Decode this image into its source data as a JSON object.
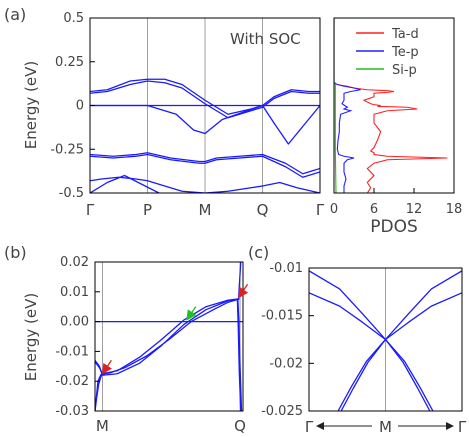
{
  "panel_labels": {
    "a": "(a)",
    "b": "(b)",
    "c": "(c)"
  },
  "chart_data": [
    {
      "type": "line",
      "panel": "(a)",
      "annotation": "With SOC",
      "ylabel": "Energy (eV)",
      "ylim": [
        -0.5,
        0.5
      ],
      "ytick_labels": [
        "0.5",
        "0.25",
        "0",
        "-0.25",
        "-0.5"
      ],
      "yticks": [
        0.5,
        0.25,
        0,
        -0.25,
        -0.5
      ],
      "kpoint_labels": [
        "Γ",
        "P",
        "M",
        "Q",
        "Γ"
      ],
      "kpoints": [
        0,
        1,
        2,
        3,
        4
      ],
      "fermi_level": 0.0,
      "series_color": "#1a1aff",
      "bands": [
        {
          "x": [
            0,
            0.3,
            0.7,
            1.0,
            1.3,
            1.6,
            2.0,
            2.4,
            2.8,
            3.0,
            3.2,
            3.5,
            3.8,
            4.0
          ],
          "y": [
            0.08,
            0.09,
            0.14,
            0.15,
            0.15,
            0.12,
            0.03,
            -0.05,
            -0.02,
            0.0,
            0.05,
            0.09,
            0.08,
            0.08
          ]
        },
        {
          "x": [
            0,
            0.3,
            0.7,
            1.0,
            1.3,
            1.6,
            2.0,
            2.4,
            2.8,
            3.0,
            3.2,
            3.5,
            3.8,
            4.0
          ],
          "y": [
            0.07,
            0.08,
            0.12,
            0.14,
            0.13,
            0.1,
            0.01,
            -0.07,
            -0.03,
            -0.01,
            0.04,
            0.08,
            0.07,
            0.07
          ]
        },
        {
          "x": [
            0,
            1.0,
            1.5,
            1.8,
            2.0,
            2.3,
            3.0
          ],
          "y": [
            0.0,
            0.0,
            -0.05,
            -0.14,
            -0.16,
            -0.08,
            0.0
          ]
        },
        {
          "x": [
            3.0,
            3.2,
            3.45,
            3.7,
            4.0
          ],
          "y": [
            0.0,
            -0.1,
            -0.22,
            -0.12,
            0.0
          ]
        },
        {
          "x": [
            0,
            0.4,
            0.8,
            1.0,
            1.4,
            1.9,
            2.0,
            2.2,
            2.6,
            3.0,
            3.4,
            3.7,
            4.0
          ],
          "y": [
            -0.28,
            -0.29,
            -0.28,
            -0.27,
            -0.3,
            -0.32,
            -0.32,
            -0.3,
            -0.29,
            -0.28,
            -0.33,
            -0.39,
            -0.36
          ]
        },
        {
          "x": [
            0,
            0.4,
            0.8,
            1.0,
            1.4,
            1.9,
            2.0,
            2.2,
            2.6,
            3.0,
            3.4,
            3.7,
            4.0
          ],
          "y": [
            -0.29,
            -0.3,
            -0.29,
            -0.28,
            -0.31,
            -0.33,
            -0.33,
            -0.31,
            -0.3,
            -0.29,
            -0.35,
            -0.41,
            -0.38
          ]
        },
        {
          "x": [
            0,
            0.2,
            0.5,
            0.8,
            1.0,
            1.3,
            1.6,
            2.0,
            2.4,
            2.8,
            3.0
          ],
          "y": [
            -0.43,
            -0.42,
            -0.41,
            -0.42,
            -0.43,
            -0.46,
            -0.49,
            -0.5,
            -0.49,
            -0.47,
            -0.46
          ]
        },
        {
          "x": [
            0,
            0.3,
            0.6,
            0.9,
            1.2
          ],
          "y": [
            -0.5,
            -0.44,
            -0.4,
            -0.45,
            -0.5
          ]
        },
        {
          "x": [
            3.0,
            3.3,
            3.6,
            4.0
          ],
          "y": [
            -0.46,
            -0.44,
            -0.47,
            -0.5
          ]
        }
      ]
    },
    {
      "type": "line",
      "panel": "PDOS",
      "xlabel": "PDOS",
      "xlim": [
        0,
        18
      ],
      "xtick_labels": [
        "0",
        "6",
        "12",
        "18"
      ],
      "xticks": [
        0,
        6,
        12,
        18
      ],
      "ylim": [
        -0.5,
        0.5
      ],
      "legend": "top-right",
      "series": [
        {
          "name": "Ta-d",
          "color": "#ff2020",
          "x": [
            0,
            0,
            0.2,
            0.2,
            0.5,
            1.2,
            2.0,
            3.0,
            4.0,
            5.0,
            8.0,
            9.0,
            8.0,
            6.0,
            6.0,
            4.5,
            5.5,
            6.0,
            7.0,
            6.5,
            11.0,
            12.5,
            8.0,
            6.0,
            6.0,
            7.0,
            6.5,
            6.0,
            5.5,
            6.0,
            6.0,
            8.0,
            17.0,
            8.0,
            6.0,
            5.0,
            6.0,
            5.0,
            5.5,
            5.0
          ],
          "y": [
            0.5,
            0.13,
            0.128,
            0.125,
            0.12,
            0.115,
            0.11,
            0.1,
            0.095,
            0.09,
            0.085,
            0.08,
            0.075,
            0.07,
            0.05,
            0.03,
            0.01,
            0.005,
            0.0,
            -0.005,
            -0.01,
            -0.02,
            -0.03,
            -0.05,
            -0.1,
            -0.15,
            -0.2,
            -0.24,
            -0.26,
            -0.27,
            -0.28,
            -0.29,
            -0.3,
            -0.31,
            -0.33,
            -0.36,
            -0.4,
            -0.44,
            -0.47,
            -0.5
          ]
        },
        {
          "name": "Te-p",
          "color": "#2020ff",
          "x": [
            0,
            0,
            0.5,
            1.5,
            3.0,
            4.0,
            2.5,
            1.5,
            1.5,
            1.2,
            1.6,
            2.0,
            1.5,
            2.5,
            1.0,
            0.8,
            0.8,
            0.6,
            0.5,
            0.7,
            1.5,
            3.0,
            2.0,
            1.5,
            1.5,
            1.8,
            1.5,
            1.5
          ],
          "y": [
            0.5,
            0.13,
            0.12,
            0.11,
            0.1,
            0.09,
            0.08,
            0.07,
            0.03,
            0.01,
            0.0,
            -0.01,
            -0.02,
            -0.03,
            -0.05,
            -0.1,
            -0.15,
            -0.2,
            -0.25,
            -0.28,
            -0.29,
            -0.3,
            -0.31,
            -0.33,
            -0.38,
            -0.42,
            -0.46,
            -0.5
          ]
        },
        {
          "name": "Si-p",
          "color": "#20c020",
          "x": [
            0,
            0,
            0.2,
            0.2,
            0.2,
            0.3
          ],
          "y": [
            0.5,
            0.13,
            0.12,
            0.0,
            -0.25,
            -0.5
          ]
        }
      ]
    },
    {
      "type": "line",
      "panel": "(b)",
      "ylabel": "Energy (eV)",
      "ylim": [
        -0.03,
        0.02
      ],
      "ytick_labels": [
        "0.02",
        "0.01",
        "0.00",
        "-0.01",
        "-0.02",
        "-0.03"
      ],
      "yticks": [
        0.02,
        0.01,
        0.0,
        -0.01,
        -0.02,
        -0.03
      ],
      "kpoint_labels": [
        "M",
        "Q"
      ],
      "kpoints": [
        0.05,
        0.98
      ],
      "fermi_level": 0.0,
      "series_color": "#1a1aff",
      "arrows": [
        {
          "color": "#e02020",
          "x": 0.05,
          "y": -0.018
        },
        {
          "color": "#20c020",
          "x": 0.62,
          "y": 0.0
        },
        {
          "color": "#e02020",
          "x": 0.97,
          "y": 0.0075
        }
      ],
      "bands": [
        {
          "x": [
            0.0,
            0.03,
            0.05,
            0.15,
            0.3,
            0.45,
            0.6,
            0.75,
            0.9,
            0.97
          ],
          "y": [
            -0.013,
            -0.015,
            -0.018,
            -0.0175,
            -0.014,
            -0.008,
            -0.001,
            0.004,
            0.007,
            0.0075
          ]
        },
        {
          "x": [
            0.0,
            0.03,
            0.05,
            0.15,
            0.3,
            0.45,
            0.6,
            0.75,
            0.9,
            0.97
          ],
          "y": [
            -0.0135,
            -0.0155,
            -0.0175,
            -0.0165,
            -0.012,
            -0.006,
            0.0005,
            0.005,
            0.0072,
            0.0076
          ]
        },
        {
          "x": [
            0.0,
            0.01,
            0.02,
            0.04,
            0.05,
            0.1,
            0.2,
            0.35,
            0.5,
            0.65,
            0.8,
            0.9,
            0.97
          ],
          "y": [
            -0.03,
            -0.025,
            -0.02,
            -0.0178,
            -0.0176,
            -0.0172,
            -0.0155,
            -0.0115,
            -0.006,
            0.0,
            0.004,
            0.0065,
            0.0075
          ]
        },
        {
          "x": [
            0.0,
            0.01,
            0.025,
            0.04,
            0.05
          ],
          "y": [
            -0.03,
            -0.026,
            -0.021,
            -0.0185,
            -0.0178
          ]
        },
        {
          "x": [
            0.97,
            0.975,
            0.985,
            0.995,
            1.0
          ],
          "y": [
            0.0075,
            0.012,
            0.02,
            0.03,
            0.04
          ]
        },
        {
          "x": [
            0.965,
            0.972,
            0.98,
            0.99
          ],
          "y": [
            0.0076,
            0.0,
            -0.015,
            -0.03
          ]
        },
        {
          "x": [
            0.962,
            0.968,
            0.975,
            0.985
          ],
          "y": [
            0.0073,
            -0.002,
            -0.017,
            -0.03
          ]
        }
      ]
    },
    {
      "type": "line",
      "panel": "(c)",
      "ylim": [
        -0.025,
        -0.01
      ],
      "ytick_labels": [
        "-0.01",
        "-0.015",
        "-0.02",
        "-0.025"
      ],
      "yticks": [
        -0.01,
        -0.015,
        -0.02,
        -0.025
      ],
      "kpoint_labels": [
        "Γ",
        "M",
        "Γ"
      ],
      "kpoints": [
        -1,
        0,
        1
      ],
      "series_color": "#1a1aff",
      "bands": [
        {
          "x": [
            -1.0,
            -0.6,
            -0.3,
            0.0,
            0.3,
            0.6,
            1.0
          ],
          "y": [
            -0.0103,
            -0.0122,
            -0.0148,
            -0.0175,
            -0.0148,
            -0.0122,
            -0.0103
          ]
        },
        {
          "x": [
            -1.0,
            -0.6,
            -0.3,
            0.0,
            0.3,
            0.6,
            1.0
          ],
          "y": [
            -0.0126,
            -0.014,
            -0.0157,
            -0.0175,
            -0.0157,
            -0.014,
            -0.0126
          ]
        },
        {
          "x": [
            -0.62,
            -0.45,
            -0.25,
            0.0,
            0.25,
            0.45,
            0.62
          ],
          "y": [
            -0.025,
            -0.0225,
            -0.0198,
            -0.0175,
            -0.0198,
            -0.0225,
            -0.025
          ]
        },
        {
          "x": [
            -0.58,
            -0.42,
            -0.23,
            0.0,
            0.23,
            0.42,
            0.58
          ],
          "y": [
            -0.025,
            -0.0226,
            -0.0199,
            -0.0175,
            -0.0199,
            -0.0226,
            -0.025
          ]
        }
      ]
    }
  ]
}
